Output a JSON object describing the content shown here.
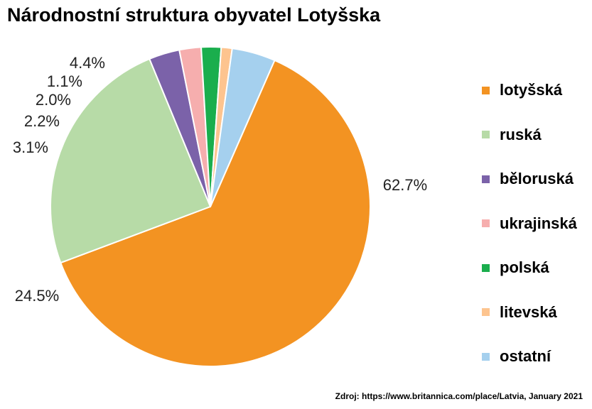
{
  "chart_data": {
    "type": "pie",
    "title": "Národnostní struktura obyvatel Lotyšska",
    "start_angle_deg": 23.7,
    "direction": "clockwise",
    "legend": "right",
    "slices": [
      {
        "label": "lotyšská",
        "value": 62.7,
        "value_label": "62.7%",
        "color": "#F39322"
      },
      {
        "label": "ruská",
        "value": 24.5,
        "value_label": "24.5%",
        "color": "#B7DBA7"
      },
      {
        "label": "běloruská",
        "value": 3.1,
        "value_label": "3.1%",
        "color": "#7B62A9"
      },
      {
        "label": "ukrajinská",
        "value": 2.2,
        "value_label": "2.2%",
        "color": "#F6AEAE"
      },
      {
        "label": "polská",
        "value": 2.0,
        "value_label": "2.0%",
        "color": "#1AAE4D"
      },
      {
        "label": "litevská",
        "value": 1.1,
        "value_label": "1.1%",
        "color": "#FDC48F"
      },
      {
        "label": "ostatní",
        "value": 4.4,
        "value_label": "4.4%",
        "color": "#A5D0EE"
      }
    ]
  },
  "source": "Zdroj: https://www.britannica.com/place/Latvia, January 2021"
}
